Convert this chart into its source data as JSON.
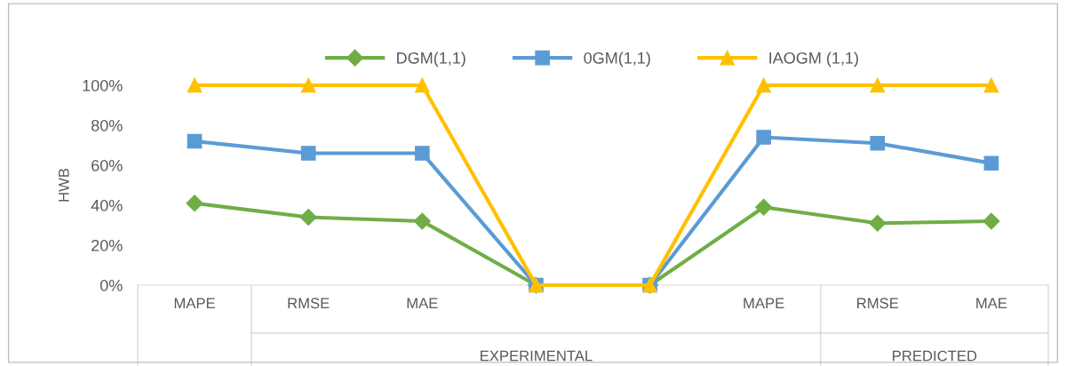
{
  "chart_data": {
    "type": "line",
    "ylabel": "HWB",
    "categories": [
      "MAPE",
      "RMSE",
      "MAE",
      null,
      null,
      "MAPE",
      "RMSE",
      "MAE"
    ],
    "series": [
      {
        "name": "DGM(1,1)",
        "color": "#70ad47",
        "marker": "diamond",
        "values": [
          41,
          34,
          32,
          0,
          0,
          39,
          31,
          32
        ]
      },
      {
        "name": "0GM(1,1)",
        "color": "#5b9bd5",
        "marker": "square",
        "values": [
          72,
          66,
          66,
          0,
          0,
          74,
          71,
          61
        ]
      },
      {
        "name": "IAOGM (1,1)",
        "color": "#ffc000",
        "marker": "triangle",
        "values": [
          100,
          100,
          100,
          0,
          0,
          100,
          100,
          100
        ]
      }
    ],
    "ylim": [
      0,
      100
    ],
    "yticks": [
      {
        "value": 0,
        "label": "0%"
      },
      {
        "value": 20,
        "label": "20%"
      },
      {
        "value": 40,
        "label": "40%"
      },
      {
        "value": 60,
        "label": "60%"
      },
      {
        "value": 80,
        "label": "80%"
      },
      {
        "value": 100,
        "label": "100%"
      }
    ],
    "annotations": [
      "EXPERIMENTAL",
      "PREDICTED"
    ],
    "legend": "top",
    "line_style": "solid"
  }
}
